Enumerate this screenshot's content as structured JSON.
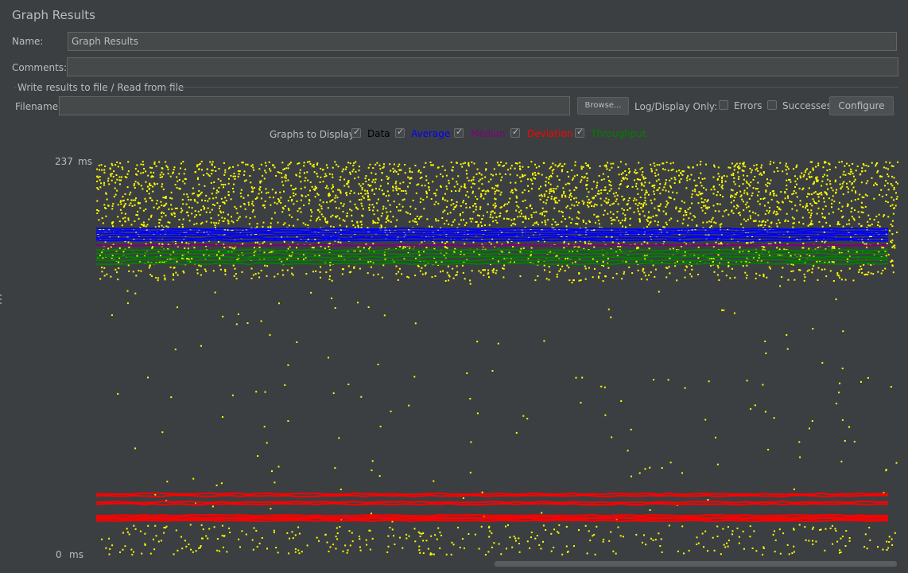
{
  "header": {
    "title": "Graph Results"
  },
  "form": {
    "name_label": "Name:",
    "name_value": "Graph Results",
    "comments_label": "Comments:",
    "comments_value": ""
  },
  "file_section": {
    "legend": "Write results to file / Read from file",
    "filename_label": "Filename",
    "filename_value": "",
    "browse_label": "Browse...",
    "log_display_label": "Log/Display Only:",
    "errors_label": "Errors",
    "errors_checked": false,
    "successes_label": "Successes",
    "successes_checked": false,
    "configure_label": "Configure"
  },
  "graphs_to_display": {
    "label": "Graphs to Display",
    "options": [
      {
        "label": "Data",
        "checked": true,
        "color": "#000000"
      },
      {
        "label": "Average",
        "checked": true,
        "color": "#0000ff"
      },
      {
        "label": "Median",
        "checked": true,
        "color": "#800080"
      },
      {
        "label": "Deviation",
        "checked": true,
        "color": "#ff0000"
      },
      {
        "label": "Throughput",
        "checked": true,
        "color": "#008000"
      }
    ]
  },
  "chart_data": {
    "type": "scatter",
    "ylim": [
      0,
      237
    ],
    "y_max_label": "237",
    "y_min_label": "0",
    "y_unit": "ms",
    "series_colors": {
      "data": "#ffff00",
      "average": "#0000ff",
      "median": "#800080",
      "deviation": "#ff0000",
      "throughput": "#008000"
    },
    "data_band_ms": [
      165,
      237
    ],
    "average_ms": 192,
    "median_ms": 186,
    "throughput_band_ms": [
      175,
      183
    ],
    "deviation_ms": [
      35,
      30,
      22,
      20
    ]
  }
}
